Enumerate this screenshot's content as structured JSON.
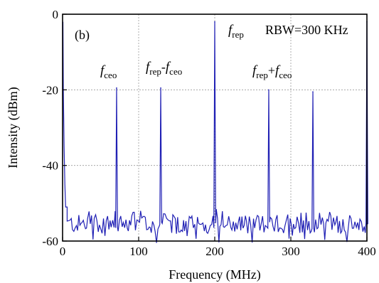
{
  "chart_data": {
    "type": "line",
    "panel_label": "(b)",
    "xlabel": "Frequency (MHz)",
    "ylabel": "Intensity (dBm)",
    "xlim": [
      0,
      400
    ],
    "ylim": [
      -60,
      0
    ],
    "xticks": [
      0,
      100,
      200,
      300,
      400
    ],
    "yticks": [
      0,
      -20,
      -40,
      -60
    ],
    "grid": true,
    "grid_style": "dotted",
    "series_color": "#1f1fb4",
    "noise_floor": {
      "mean": -55.5,
      "spread": 2.5,
      "x_start": 6
    },
    "low_frequency_decay": [
      {
        "x": 0.5,
        "y": -2
      },
      {
        "x": 1.0,
        "y": -20
      },
      {
        "x": 2.0,
        "y": -35
      },
      {
        "x": 3.0,
        "y": -45
      },
      {
        "x": 4.0,
        "y": -51
      },
      {
        "x": 6.0,
        "y": -51
      }
    ],
    "peaks": [
      {
        "x": 71,
        "y": -19.5
      },
      {
        "x": 129,
        "y": -19.5
      },
      {
        "x": 200,
        "y": -2
      },
      {
        "x": 271,
        "y": -20
      },
      {
        "x": 329,
        "y": -20.5
      },
      {
        "x": 400,
        "y": -2
      }
    ],
    "annotations": [
      {
        "id": "rbw",
        "text": "RBW=300 KHz"
      },
      {
        "id": "f_ceo",
        "parts": [
          {
            "t": "f",
            "style": "italic"
          },
          {
            "t": "ceo",
            "style": "sub"
          }
        ]
      },
      {
        "id": "f_rep_minus_ceo",
        "parts": [
          {
            "t": "f",
            "style": "italic"
          },
          {
            "t": "rep",
            "style": "sub"
          },
          {
            "t": "-",
            "style": "normal"
          },
          {
            "t": "f",
            "style": "italic"
          },
          {
            "t": "ceo",
            "style": "sub"
          }
        ]
      },
      {
        "id": "f_rep",
        "parts": [
          {
            "t": "f",
            "style": "italic"
          },
          {
            "t": "rep",
            "style": "sub"
          }
        ]
      },
      {
        "id": "f_rep_plus_ceo",
        "parts": [
          {
            "t": "f",
            "style": "italic"
          },
          {
            "t": "rep",
            "style": "sub"
          },
          {
            "t": "+",
            "style": "normal"
          },
          {
            "t": "f",
            "style": "italic"
          },
          {
            "t": "ceo",
            "style": "sub"
          }
        ]
      }
    ]
  }
}
